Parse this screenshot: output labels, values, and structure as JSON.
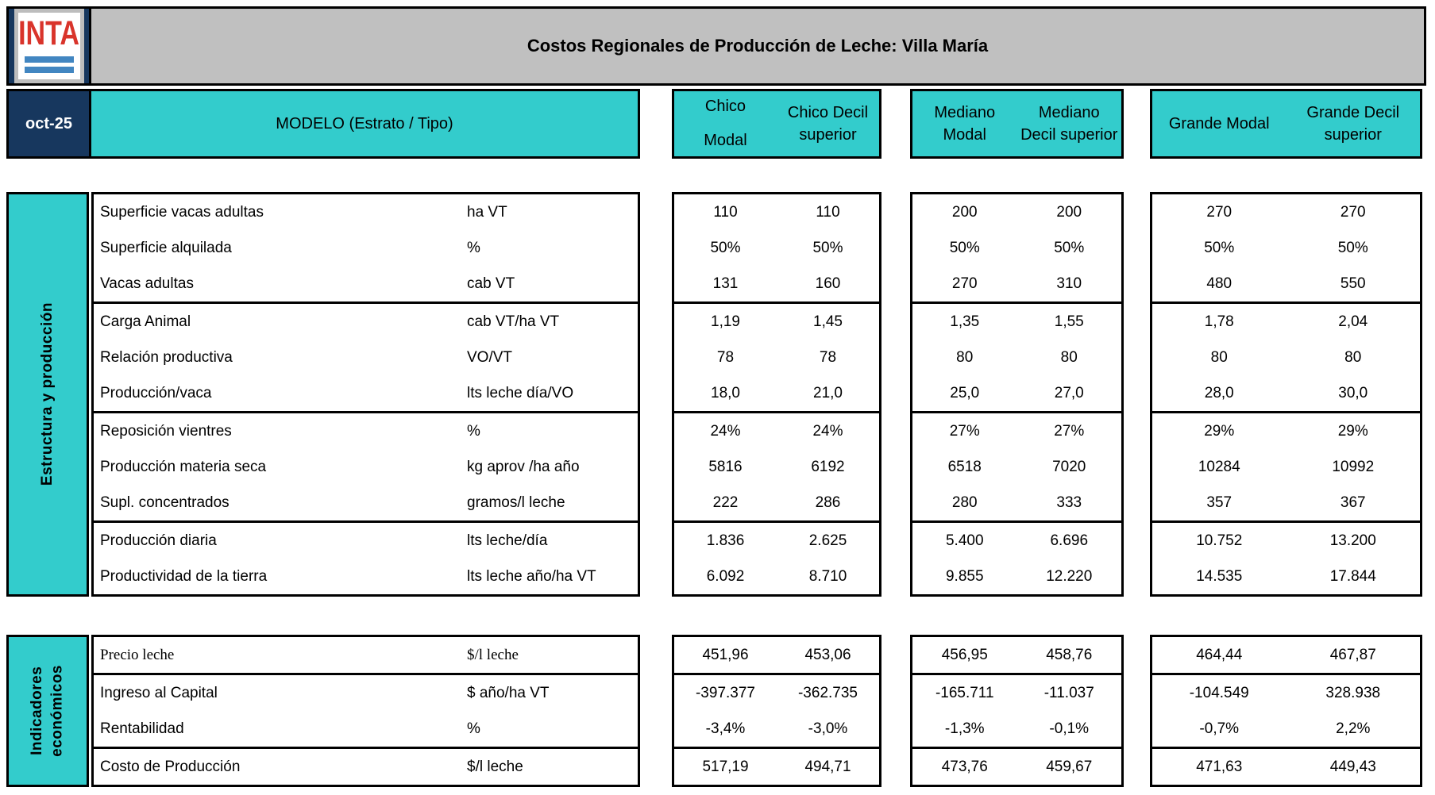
{
  "header": {
    "logo": "INTA",
    "title": "Costos Regionales de Producción de Leche: Villa María",
    "date": "oct-25",
    "model": "MODELO (Estrato / Tipo)",
    "col_groups": [
      {
        "c1": "Chico\nModal",
        "c2": "Chico Decil\nsuperior"
      },
      {
        "c1": "Mediano\nModal",
        "c2": "Mediano\nDecil superior"
      },
      {
        "c1": "Grande Modal",
        "c2": "Grande Decil\nsuperior"
      }
    ]
  },
  "colors": {
    "teal": "#33cccc",
    "navy": "#17375e",
    "banner_gray": "#c0c0c0",
    "logo_red": "#d9342b",
    "logo_blue": "#4286c1"
  },
  "s1": {
    "name": "Estructura y producción",
    "g1": {
      "r1": {
        "label": "Superficie vacas adultas",
        "unit": "ha VT",
        "v": [
          "110",
          "110",
          "200",
          "200",
          "270",
          "270"
        ]
      },
      "r2": {
        "label": "Superficie alquilada",
        "unit": "%",
        "v": [
          "50%",
          "50%",
          "50%",
          "50%",
          "50%",
          "50%"
        ]
      },
      "r3": {
        "label": "Vacas adultas",
        "unit": "cab VT",
        "v": [
          "131",
          "160",
          "270",
          "310",
          "480",
          "550"
        ]
      }
    },
    "g2": {
      "r1": {
        "label": "Carga Animal",
        "unit": "cab VT/ha VT",
        "v": [
          "1,19",
          "1,45",
          "1,35",
          "1,55",
          "1,78",
          "2,04"
        ]
      },
      "r2": {
        "label": "Relación productiva",
        "unit": "VO/VT",
        "v": [
          "78",
          "78",
          "80",
          "80",
          "80",
          "80"
        ]
      },
      "r3": {
        "label": "Producción/vaca",
        "unit": "lts leche día/VO",
        "v": [
          "18,0",
          "21,0",
          "25,0",
          "27,0",
          "28,0",
          "30,0"
        ]
      }
    },
    "g3": {
      "r1": {
        "label": "Reposición vientres",
        "unit": "%",
        "v": [
          "24%",
          "24%",
          "27%",
          "27%",
          "29%",
          "29%"
        ]
      },
      "r2": {
        "label": "Producción materia seca",
        "unit": "kg aprov /ha año",
        "v": [
          "5816",
          "6192",
          "6518",
          "7020",
          "10284",
          "10992"
        ]
      },
      "r3": {
        "label": "Supl. concentrados",
        "unit": "gramos/l leche",
        "v": [
          "222",
          "286",
          "280",
          "333",
          "357",
          "367"
        ]
      }
    },
    "g4": {
      "r1": {
        "label": "Producción diaria",
        "unit": "lts leche/día",
        "v": [
          "1.836",
          "2.625",
          "5.400",
          "6.696",
          "10.752",
          "13.200"
        ]
      },
      "r2": {
        "label": "Productividad de la tierra",
        "unit": "lts leche año/ha VT",
        "v": [
          "6.092",
          "8.710",
          "9.855",
          "12.220",
          "14.535",
          "17.844"
        ]
      }
    }
  },
  "s2": {
    "name": "Indicadores\neconómicos",
    "g1": {
      "r1": {
        "label": "Precio leche",
        "unit": "$/l leche",
        "v": [
          "451,96",
          "453,06",
          "456,95",
          "458,76",
          "464,44",
          "467,87"
        ]
      }
    },
    "g2": {
      "r1": {
        "label": "Ingreso al Capital",
        "unit": "$ año/ha VT",
        "v": [
          "-397.377",
          "-362.735",
          "-165.711",
          "-11.037",
          "-104.549",
          "328.938"
        ]
      },
      "r2": {
        "label": "Rentabilidad",
        "unit": "%",
        "v": [
          "-3,4%",
          "-3,0%",
          "-1,3%",
          "-0,1%",
          "-0,7%",
          "2,2%"
        ]
      }
    },
    "g3": {
      "r1": {
        "label": "Costo de Producción",
        "unit": "$/l leche",
        "v": [
          "517,19",
          "494,71",
          "473,76",
          "459,67",
          "471,63",
          "449,43"
        ]
      }
    }
  }
}
